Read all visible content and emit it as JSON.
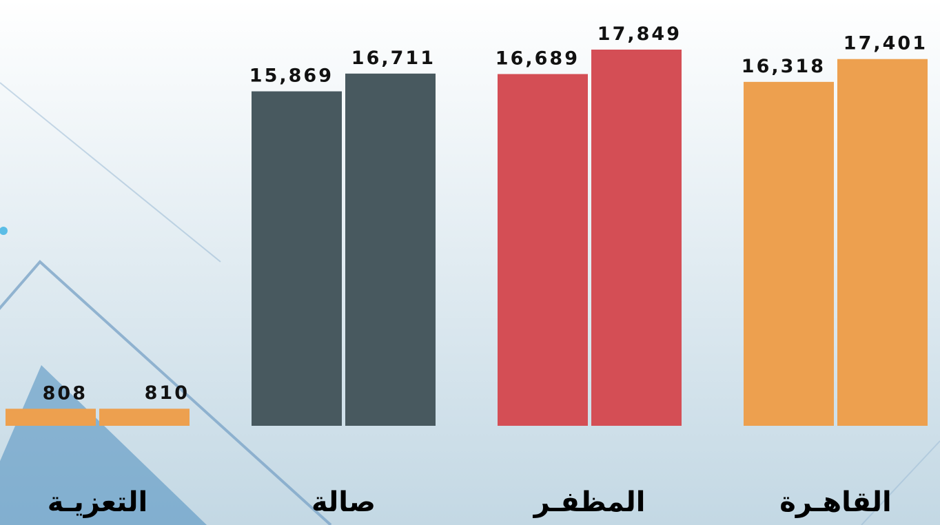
{
  "chart_data": {
    "type": "bar",
    "categories": [
      "القاهـرة",
      "المظفـر",
      "صالة",
      "التعزيـة"
    ],
    "colors": [
      "#eda04f",
      "#d44e55",
      "#48595f",
      "#eda04f"
    ],
    "series": [
      {
        "values": [
          16318,
          16689,
          15869,
          808
        ],
        "value_labels": [
          "16,318",
          "16,689",
          "15,869",
          "808"
        ]
      },
      {
        "values": [
          17401,
          17849,
          16711,
          810
        ],
        "value_labels": [
          "17,401",
          "17,849",
          "16,711",
          "810"
        ]
      }
    ]
  }
}
